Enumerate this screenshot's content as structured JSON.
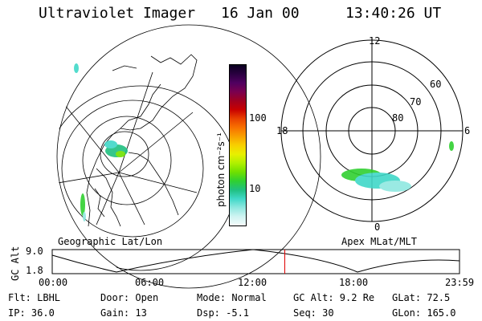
{
  "header": {
    "title": "Ultraviolet Imager",
    "date": "16 Jan 00",
    "time": "13:40:26 UT"
  },
  "left_panel": {
    "caption": "Geographic Lat/Lon"
  },
  "right_panel": {
    "caption": "Apex MLat/MLT",
    "mlt_labels": {
      "top": "12",
      "right": "6",
      "bottom": "0",
      "left": "18"
    },
    "lat_labels": [
      "60",
      "70",
      "80"
    ]
  },
  "colorbar": {
    "label": "photon cm⁻²s⁻¹",
    "ticks": [
      "100",
      "10"
    ],
    "colors": [
      "#0a0020",
      "#2a0040",
      "#500060",
      "#7a0050",
      "#a00020",
      "#c80000",
      "#e84000",
      "#f87000",
      "#f8a000",
      "#f8d000",
      "#e8f000",
      "#b0f000",
      "#70e000",
      "#30d030",
      "#20c080",
      "#40d8c8",
      "#90e8e0",
      "#d0f4f2",
      "#f4fbfb"
    ]
  },
  "timeline": {
    "ylabel": "GC Alt",
    "ymax_label": "9.0",
    "ymin_label": "1.8",
    "ticks": [
      "00:00",
      "06:00",
      "12:00",
      "18:00",
      "23:59"
    ],
    "marker_color": "#e00000",
    "current_time_fraction": 0.5697
  },
  "info": {
    "flt": "Flt: LBHL",
    "ip": "IP: 36.0",
    "door": "Door: Open",
    "gain": "Gain: 13",
    "mode": "Mode: Normal",
    "dsp": "Dsp:    -5.1",
    "gcalt": "GC Alt: 9.2 Re",
    "seq": "Seq: 30",
    "glat": "GLat:  72.5",
    "glon": "GLon: 165.0"
  }
}
